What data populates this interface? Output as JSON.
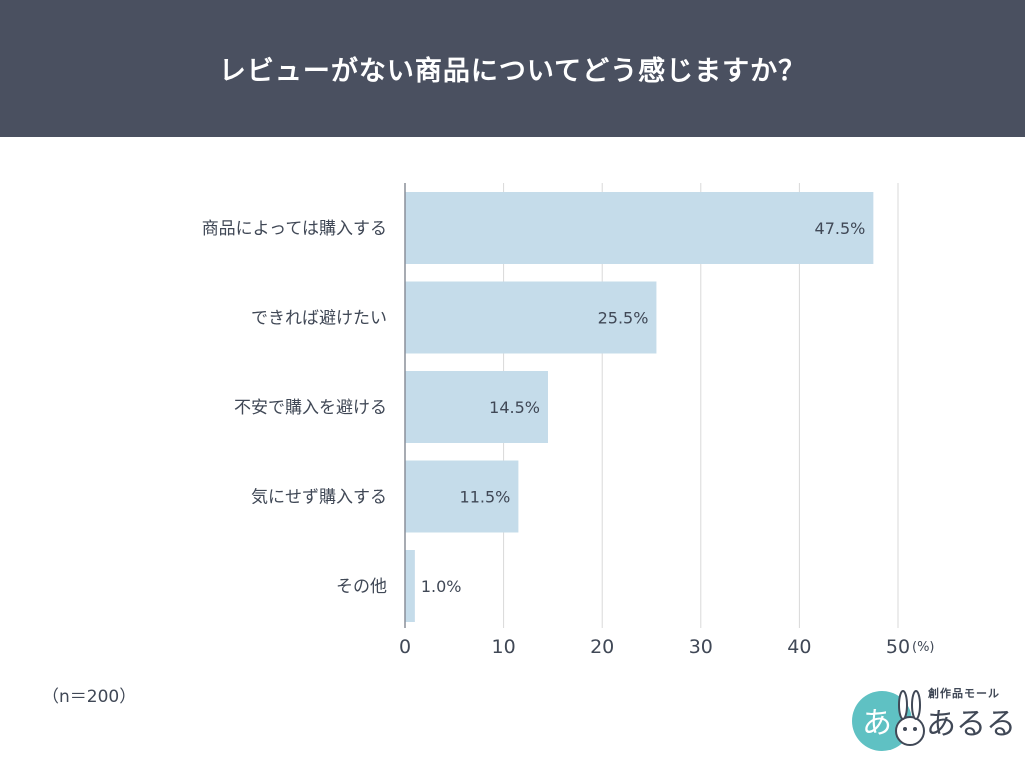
{
  "header": {
    "title": "レビューがない商品についてどう感じますか？"
  },
  "note": {
    "sample_size": "（n＝200）"
  },
  "logo": {
    "tagline": "創作品モール",
    "name": "あるる",
    "badge_glyph": "あ",
    "icon": "rabbit-icon"
  },
  "colors": {
    "bar": "#c5dcea",
    "header": "#4a5060",
    "grid": "#d9d9d9",
    "text": "#404856"
  },
  "chart_data": {
    "type": "bar",
    "orientation": "horizontal",
    "title": "",
    "xlabel": "",
    "ylabel": "",
    "unit": "(%)",
    "categories": [
      "商品によっては購入する",
      "できれば避けたい",
      "不安で購入を避ける",
      "気にせず購入する",
      "その他"
    ],
    "values": [
      47.5,
      25.5,
      14.5,
      11.5,
      1.0
    ],
    "value_labels": [
      "47.5%",
      "25.5%",
      "14.5%",
      "11.5%",
      "1.0%"
    ],
    "xlim": [
      0,
      50
    ],
    "xticks": [
      0,
      10,
      20,
      30,
      40,
      50
    ],
    "xtick_labels": [
      "0",
      "10",
      "20",
      "30",
      "40",
      "50"
    ],
    "grid": true,
    "legend": "none"
  }
}
